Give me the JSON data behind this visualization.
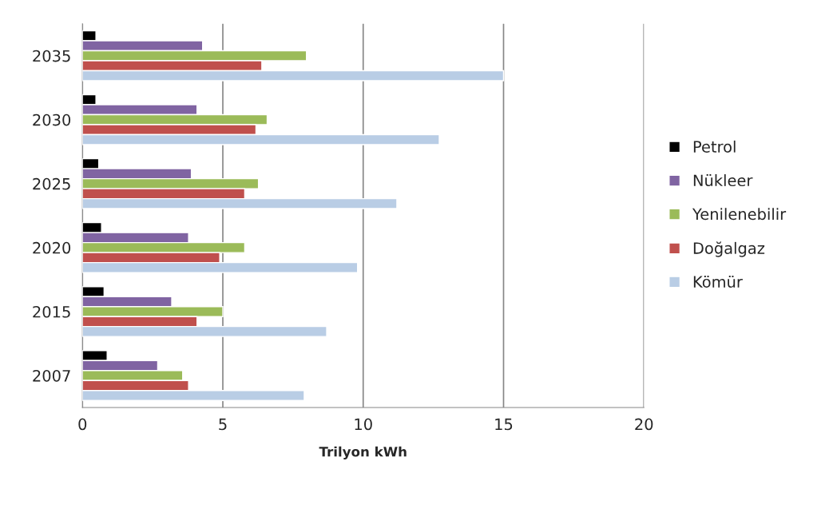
{
  "chart_data": {
    "type": "bar",
    "orientation": "horizontal",
    "xlabel": "Trilyon kWh",
    "categories": [
      "2035",
      "2030",
      "2025",
      "2020",
      "2015",
      "2007"
    ],
    "series": [
      {
        "name": "Petrol",
        "color": "#000000",
        "values": [
          0.48,
          0.48,
          0.58,
          0.68,
          0.77,
          0.88
        ]
      },
      {
        "name": "Nükleer",
        "color": "#8064a2",
        "values": [
          4.28,
          4.08,
          3.88,
          3.78,
          3.18,
          2.68
        ]
      },
      {
        "name": "Yenilenebilir",
        "color": "#9bbb59",
        "values": [
          7.98,
          6.58,
          6.27,
          5.78,
          5.0,
          3.57
        ]
      },
      {
        "name": "Doğalgaz",
        "color": "#c0504d",
        "values": [
          6.39,
          6.18,
          5.78,
          4.89,
          4.08,
          3.78
        ]
      },
      {
        "name": "Kömür",
        "color": "#b9cde5",
        "values": [
          15.0,
          12.71,
          11.2,
          9.8,
          8.7,
          7.9
        ]
      }
    ],
    "xlim": [
      0,
      20
    ],
    "xticks": [
      0,
      5,
      10,
      15,
      20
    ],
    "grid": "x",
    "legend": "right"
  }
}
